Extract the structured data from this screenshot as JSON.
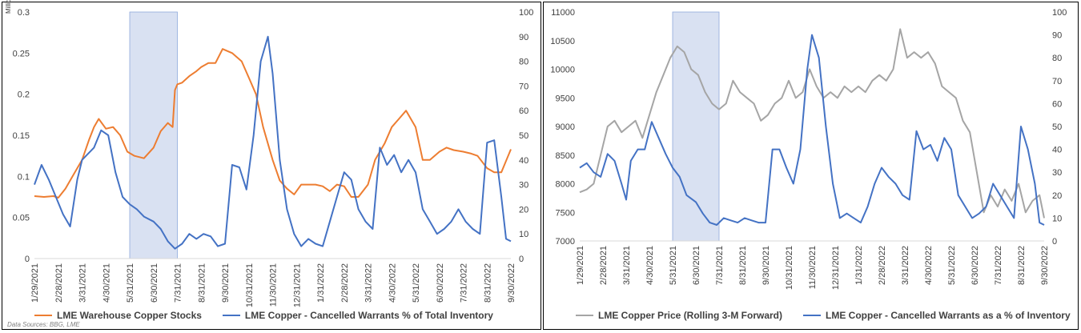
{
  "chart_data": [
    {
      "type": "line",
      "unit_label": "Millions",
      "source": "Data Sources: BBG, LME",
      "highlight_range": [
        "5/31/2021",
        "7/31/2021"
      ],
      "left_axis": {
        "ylim": [
          0,
          0.3
        ],
        "ticks": [
          "0",
          "0.05",
          "0.1",
          "0.15",
          "0.2",
          "0.25",
          "0.3"
        ]
      },
      "right_axis": {
        "ylim": [
          0,
          100
        ],
        "ticks": [
          "0",
          "10",
          "20",
          "30",
          "40",
          "50",
          "60",
          "70",
          "80",
          "90",
          "100"
        ]
      },
      "x_ticks": [
        "1/29/2021",
        "2/28/2021",
        "3/31/2021",
        "4/30/2021",
        "5/31/2021",
        "6/30/2021",
        "7/31/2021",
        "8/31/2021",
        "9/30/2021",
        "10/31/2021",
        "11/30/2021",
        "12/31/2021",
        "1/31/2022",
        "2/28/2022",
        "3/31/2022",
        "4/30/2022",
        "5/31/2022",
        "6/30/2022",
        "7/31/2022",
        "8/31/2022",
        "9/30/2022"
      ],
      "series": [
        {
          "name": "LME Warehouse Copper Stocks",
          "axis": "left",
          "color": "#ED7D31",
          "x": [
            0,
            0.4,
            0.8,
            1.0,
            1.3,
            1.6,
            2.0,
            2.3,
            2.5,
            2.7,
            3.0,
            3.3,
            3.6,
            3.9,
            4.2,
            4.6,
            5.0,
            5.3,
            5.6,
            5.8,
            5.9,
            6.0,
            6.2,
            6.5,
            6.8,
            7.0,
            7.3,
            7.6,
            7.9,
            8.3,
            8.7,
            9.0,
            9.3,
            9.6,
            10.0,
            10.3,
            10.6,
            10.9,
            11.2,
            11.5,
            11.8,
            12.1,
            12.4,
            12.7,
            13.0,
            13.3,
            13.6,
            14.0,
            14.3,
            14.7,
            15.0,
            15.3,
            15.6,
            16.0,
            16.3,
            16.6,
            17.0,
            17.3,
            17.6,
            18.0,
            18.3,
            18.6,
            19.0,
            19.3,
            19.6,
            20.0
          ],
          "values": [
            0.076,
            0.075,
            0.076,
            0.074,
            0.085,
            0.1,
            0.12,
            0.145,
            0.16,
            0.17,
            0.158,
            0.16,
            0.15,
            0.13,
            0.125,
            0.122,
            0.135,
            0.155,
            0.165,
            0.16,
            0.205,
            0.212,
            0.214,
            0.222,
            0.228,
            0.233,
            0.238,
            0.238,
            0.255,
            0.25,
            0.24,
            0.22,
            0.2,
            0.16,
            0.12,
            0.095,
            0.085,
            0.078,
            0.09,
            0.09,
            0.09,
            0.088,
            0.082,
            0.09,
            0.088,
            0.075,
            0.075,
            0.09,
            0.12,
            0.14,
            0.16,
            0.17,
            0.18,
            0.16,
            0.12,
            0.12,
            0.13,
            0.135,
            0.132,
            0.13,
            0.128,
            0.125,
            0.11,
            0.105,
            0.105,
            0.133
          ]
        },
        {
          "name": "LME Copper - Cancelled Warrants % of Total Inventory",
          "axis": "right",
          "color": "#4472C4",
          "x": [
            0,
            0.3,
            0.6,
            0.9,
            1.2,
            1.5,
            1.8,
            2.0,
            2.2,
            2.5,
            2.8,
            3.1,
            3.4,
            3.7,
            4.0,
            4.3,
            4.6,
            5.0,
            5.3,
            5.6,
            5.9,
            6.2,
            6.5,
            6.8,
            7.1,
            7.4,
            7.7,
            8.0,
            8.3,
            8.6,
            8.9,
            9.2,
            9.5,
            9.8,
            10.0,
            10.3,
            10.6,
            10.9,
            11.2,
            11.5,
            11.8,
            12.1,
            12.4,
            12.7,
            13.0,
            13.3,
            13.6,
            13.9,
            14.2,
            14.5,
            14.8,
            15.1,
            15.4,
            15.7,
            16.0,
            16.3,
            16.6,
            16.9,
            17.2,
            17.5,
            17.8,
            18.1,
            18.4,
            18.7,
            19.0,
            19.3,
            19.6,
            19.8,
            20.0
          ],
          "values": [
            30,
            38,
            32,
            25,
            18,
            13,
            32,
            40,
            42,
            45,
            52,
            50,
            35,
            25,
            22,
            20,
            17,
            15,
            12,
            7,
            4,
            6,
            10,
            8,
            10,
            9,
            5,
            6,
            38,
            37,
            28,
            50,
            80,
            90,
            75,
            40,
            20,
            10,
            5,
            8,
            6,
            5,
            15,
            25,
            35,
            32,
            20,
            15,
            12,
            45,
            38,
            42,
            35,
            40,
            35,
            20,
            15,
            10,
            12,
            15,
            20,
            15,
            12,
            10,
            47,
            48,
            25,
            8,
            7
          ]
        }
      ]
    },
    {
      "type": "line",
      "highlight_range": [
        "5/31/2021",
        "7/31/2021"
      ],
      "left_axis": {
        "ylim": [
          7000,
          11000
        ],
        "ticks": [
          "7000",
          "7500",
          "8000",
          "8500",
          "9000",
          "9500",
          "10000",
          "10500",
          "11000"
        ]
      },
      "right_axis": {
        "ylim": [
          0,
          100
        ],
        "ticks": [
          "0",
          "10",
          "20",
          "30",
          "40",
          "50",
          "60",
          "70",
          "80",
          "90",
          "100"
        ]
      },
      "x_ticks": [
        "1/29/2021",
        "2/28/2021",
        "3/31/2021",
        "4/30/2021",
        "5/31/2021",
        "6/30/2021",
        "7/31/2021",
        "8/31/2021",
        "9/30/2021",
        "10/31/2021",
        "11/30/2021",
        "12/31/2021",
        "1/31/2022",
        "2/28/2022",
        "3/31/2022",
        "4/30/2022",
        "5/31/2022",
        "6/30/2022",
        "7/31/2022",
        "8/31/2022",
        "9/30/2022"
      ],
      "series": [
        {
          "name": "LME Copper Price (Rolling 3-M Forward)",
          "axis": "left",
          "color": "#A5A5A5",
          "x": [
            0,
            0.3,
            0.6,
            0.9,
            1.2,
            1.5,
            1.8,
            2.1,
            2.4,
            2.7,
            3.0,
            3.3,
            3.6,
            3.9,
            4.2,
            4.5,
            4.8,
            5.1,
            5.4,
            5.7,
            6.0,
            6.3,
            6.6,
            6.9,
            7.2,
            7.5,
            7.8,
            8.1,
            8.4,
            8.7,
            9.0,
            9.3,
            9.6,
            9.9,
            10.2,
            10.5,
            10.8,
            11.1,
            11.4,
            11.7,
            12.0,
            12.3,
            12.6,
            12.9,
            13.2,
            13.5,
            13.8,
            14.1,
            14.4,
            14.7,
            15.0,
            15.3,
            15.6,
            15.9,
            16.2,
            16.5,
            16.8,
            17.1,
            17.4,
            17.7,
            18.0,
            18.3,
            18.6,
            18.9,
            19.2,
            19.5,
            19.8,
            20.0
          ],
          "values": [
            7850,
            7900,
            8000,
            8500,
            9000,
            9100,
            8900,
            9000,
            9100,
            8800,
            9200,
            9600,
            9900,
            10200,
            10400,
            10300,
            10000,
            9900,
            9600,
            9400,
            9300,
            9400,
            9800,
            9600,
            9500,
            9400,
            9100,
            9200,
            9400,
            9500,
            9800,
            9500,
            9600,
            10000,
            9700,
            9500,
            9600,
            9500,
            9700,
            9600,
            9700,
            9600,
            9800,
            9900,
            9800,
            10000,
            10700,
            10200,
            10300,
            10200,
            10300,
            10100,
            9700,
            9600,
            9500,
            9100,
            8900,
            8200,
            7500,
            7800,
            7600,
            7900,
            7700,
            8000,
            7500,
            7700,
            7800,
            7400
          ]
        },
        {
          "name": "LME Copper - Cancelled Warrants as a % of Inventory",
          "axis": "right",
          "color": "#4472C4",
          "x": [
            0,
            0.3,
            0.6,
            0.9,
            1.2,
            1.5,
            1.8,
            2.0,
            2.2,
            2.5,
            2.8,
            3.1,
            3.4,
            3.7,
            4.0,
            4.3,
            4.6,
            5.0,
            5.3,
            5.6,
            5.9,
            6.2,
            6.5,
            6.8,
            7.1,
            7.4,
            7.7,
            8.0,
            8.3,
            8.6,
            8.9,
            9.2,
            9.5,
            9.8,
            10.0,
            10.3,
            10.6,
            10.9,
            11.2,
            11.5,
            11.8,
            12.1,
            12.4,
            12.7,
            13.0,
            13.3,
            13.6,
            13.9,
            14.2,
            14.5,
            14.8,
            15.1,
            15.4,
            15.7,
            16.0,
            16.3,
            16.6,
            16.9,
            17.2,
            17.5,
            17.8,
            18.1,
            18.4,
            18.7,
            19.0,
            19.3,
            19.6,
            19.8,
            20.0
          ],
          "values": [
            32,
            34,
            30,
            28,
            38,
            35,
            25,
            18,
            35,
            40,
            40,
            52,
            45,
            38,
            32,
            28,
            20,
            17,
            12,
            8,
            7,
            10,
            9,
            8,
            10,
            9,
            8,
            8,
            40,
            40,
            32,
            25,
            40,
            75,
            90,
            80,
            50,
            25,
            10,
            12,
            10,
            8,
            15,
            25,
            32,
            28,
            25,
            20,
            18,
            48,
            40,
            42,
            35,
            45,
            40,
            20,
            15,
            10,
            12,
            15,
            25,
            20,
            15,
            10,
            50,
            40,
            25,
            8,
            7
          ]
        }
      ]
    }
  ]
}
